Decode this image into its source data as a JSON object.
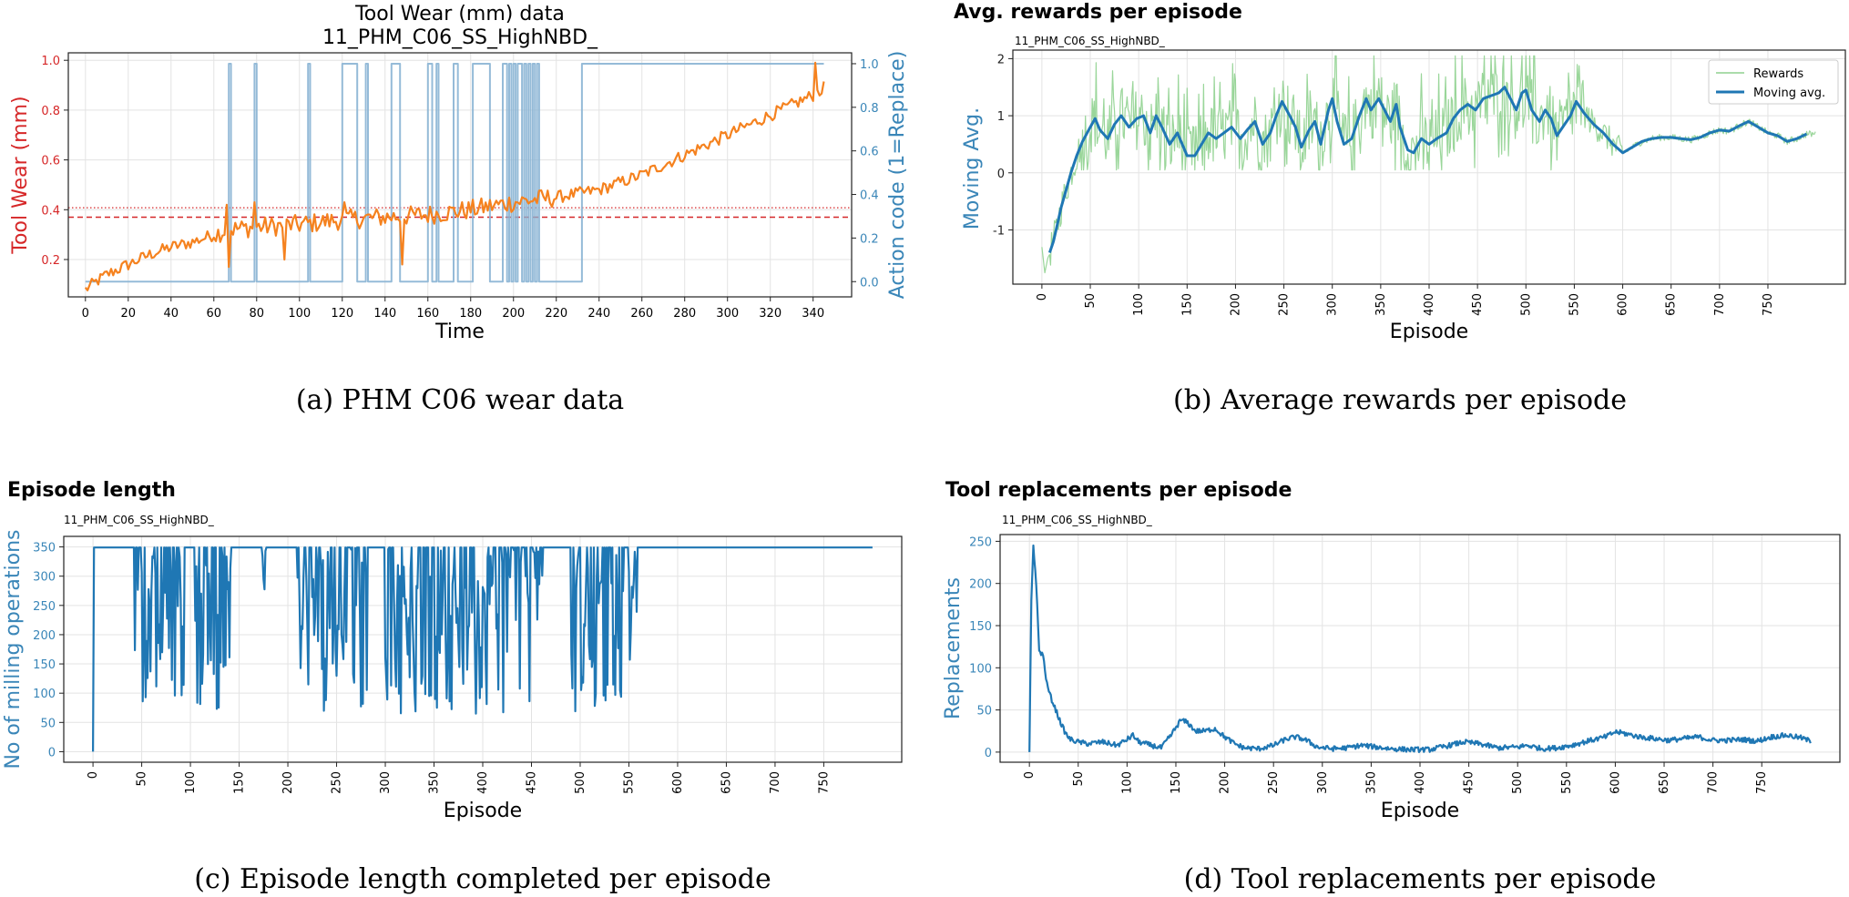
{
  "chart_data": [
    {
      "type": "line",
      "panel": "a",
      "title": "Tool Wear (mm) data",
      "subtitle": "11_PHM_C06_SS_HighNBD_",
      "xlabel": "Time",
      "ylabel": "Tool Wear (mm)",
      "y2label": "Action code (1=Replace)",
      "caption": "(a) PHM C06 wear data",
      "xlim": [
        -8,
        358
      ],
      "ylim": [
        0.05,
        1.03
      ],
      "y2lim": [
        -0.07,
        1.05
      ],
      "xticks": [
        0,
        20,
        40,
        60,
        80,
        100,
        120,
        140,
        160,
        180,
        200,
        220,
        240,
        260,
        280,
        300,
        320,
        340
      ],
      "yticks": [
        0.2,
        0.4,
        0.6,
        0.8,
        1.0
      ],
      "y2ticks": [
        0.0,
        0.2,
        0.4,
        0.6,
        0.8,
        1.0
      ],
      "colors": {
        "wear": "#f5821f",
        "action": "#8ab4d4",
        "ylabel": "#d62728",
        "y2label": "#3a86b8",
        "hline": "#d62728"
      },
      "hlines": [
        0.408,
        0.37
      ],
      "wear_trend": [
        [
          0,
          0.08
        ],
        [
          10,
          0.14
        ],
        [
          20,
          0.18
        ],
        [
          30,
          0.22
        ],
        [
          40,
          0.25
        ],
        [
          50,
          0.27
        ],
        [
          60,
          0.3
        ],
        [
          66,
          0.32
        ],
        [
          80,
          0.33
        ],
        [
          100,
          0.34
        ],
        [
          120,
          0.36
        ],
        [
          140,
          0.37
        ],
        [
          160,
          0.38
        ],
        [
          180,
          0.4
        ],
        [
          200,
          0.43
        ],
        [
          220,
          0.45
        ],
        [
          240,
          0.48
        ],
        [
          260,
          0.54
        ],
        [
          280,
          0.62
        ],
        [
          300,
          0.7
        ],
        [
          320,
          0.78
        ],
        [
          340,
          0.86
        ],
        [
          345,
          0.89
        ]
      ],
      "wear_noise": 0.025,
      "wear_spikes": [
        [
          66,
          0.42
        ],
        [
          67,
          0.17
        ],
        [
          79,
          0.43
        ],
        [
          93,
          0.2
        ],
        [
          121,
          0.43
        ],
        [
          148,
          0.18
        ],
        [
          341,
          0.99
        ]
      ],
      "action_steps": [
        [
          0,
          0
        ],
        [
          67,
          0
        ],
        [
          67,
          1
        ],
        [
          68,
          1
        ],
        [
          68,
          0
        ],
        [
          79,
          0
        ],
        [
          79,
          1
        ],
        [
          80,
          1
        ],
        [
          80,
          0
        ],
        [
          104,
          0
        ],
        [
          104,
          1
        ],
        [
          105,
          1
        ],
        [
          105,
          0
        ],
        [
          120,
          0
        ],
        [
          120,
          1
        ],
        [
          127,
          1
        ],
        [
          127,
          0
        ],
        [
          131,
          0
        ],
        [
          131,
          1
        ],
        [
          132,
          1
        ],
        [
          132,
          0
        ],
        [
          143,
          0
        ],
        [
          143,
          1
        ],
        [
          147,
          1
        ],
        [
          147,
          0
        ],
        [
          160,
          0
        ],
        [
          160,
          1
        ],
        [
          162,
          1
        ],
        [
          162,
          0
        ],
        [
          164,
          0
        ],
        [
          164,
          1
        ],
        [
          165,
          1
        ],
        [
          165,
          0
        ],
        [
          172,
          0
        ],
        [
          172,
          1
        ],
        [
          174,
          1
        ],
        [
          174,
          0
        ],
        [
          181,
          0
        ],
        [
          181,
          1
        ],
        [
          189,
          1
        ],
        [
          189,
          0
        ],
        [
          195,
          0
        ],
        [
          195,
          1
        ],
        [
          197,
          1
        ],
        [
          197,
          0
        ],
        [
          198,
          0
        ],
        [
          198,
          1
        ],
        [
          199,
          1
        ],
        [
          199,
          0
        ],
        [
          200,
          0
        ],
        [
          200,
          1
        ],
        [
          201,
          1
        ],
        [
          201,
          0
        ],
        [
          202,
          0
        ],
        [
          202,
          1
        ],
        [
          204,
          1
        ],
        [
          204,
          0
        ],
        [
          205,
          0
        ],
        [
          205,
          1
        ],
        [
          206,
          1
        ],
        [
          206,
          0
        ],
        [
          207,
          0
        ],
        [
          207,
          1
        ],
        [
          208,
          1
        ],
        [
          208,
          0
        ],
        [
          209,
          0
        ],
        [
          209,
          1
        ],
        [
          210,
          1
        ],
        [
          210,
          0
        ],
        [
          211,
          0
        ],
        [
          211,
          1
        ],
        [
          212,
          1
        ],
        [
          212,
          0
        ],
        [
          232,
          0
        ],
        [
          232,
          1
        ],
        [
          345,
          1
        ]
      ]
    },
    {
      "type": "line",
      "panel": "b",
      "title": "Avg. rewards per episode",
      "subtitle": "11_PHM_C06_SS_HighNBD_",
      "xlabel": "Episode",
      "ylabel": "Moving Avg.",
      "caption": "(b) Average rewards per episode",
      "xlim": [
        -30,
        830
      ],
      "ylim": [
        -1.95,
        2.15
      ],
      "xticks": [
        0,
        50,
        100,
        150,
        200,
        250,
        300,
        350,
        400,
        450,
        500,
        550,
        600,
        650,
        700,
        750
      ],
      "yticks": [
        -1,
        0,
        1,
        2
      ],
      "legend": {
        "position": "top-right",
        "entries": [
          "Rewards",
          "Moving avg."
        ]
      },
      "colors": {
        "rewards": "#8fd18f",
        "moving_avg": "#1f77b4",
        "ylabel": "#3a86b8"
      },
      "moving_avg": [
        [
          8,
          -1.4
        ],
        [
          12,
          -1.2
        ],
        [
          16,
          -0.9
        ],
        [
          20,
          -0.6
        ],
        [
          25,
          -0.3
        ],
        [
          30,
          0.0
        ],
        [
          36,
          0.3
        ],
        [
          42,
          0.55
        ],
        [
          50,
          0.8
        ],
        [
          55,
          0.95
        ],
        [
          60,
          0.75
        ],
        [
          68,
          0.6
        ],
        [
          75,
          0.85
        ],
        [
          82,
          1.0
        ],
        [
          90,
          0.8
        ],
        [
          98,
          0.95
        ],
        [
          105,
          1.0
        ],
        [
          112,
          0.7
        ],
        [
          118,
          1.0
        ],
        [
          124,
          0.8
        ],
        [
          132,
          0.5
        ],
        [
          140,
          0.7
        ],
        [
          150,
          0.3
        ],
        [
          158,
          0.3
        ],
        [
          165,
          0.5
        ],
        [
          172,
          0.7
        ],
        [
          180,
          0.6
        ],
        [
          188,
          0.7
        ],
        [
          196,
          0.8
        ],
        [
          205,
          0.6
        ],
        [
          212,
          0.75
        ],
        [
          220,
          0.9
        ],
        [
          228,
          0.5
        ],
        [
          236,
          0.7
        ],
        [
          242,
          1.0
        ],
        [
          248,
          1.25
        ],
        [
          256,
          1.0
        ],
        [
          262,
          0.8
        ],
        [
          268,
          0.45
        ],
        [
          276,
          0.75
        ],
        [
          282,
          0.9
        ],
        [
          288,
          0.5
        ],
        [
          296,
          1.1
        ],
        [
          300,
          1.3
        ],
        [
          305,
          0.9
        ],
        [
          312,
          0.5
        ],
        [
          320,
          0.6
        ],
        [
          328,
          1.0
        ],
        [
          335,
          1.3
        ],
        [
          340,
          1.1
        ],
        [
          348,
          1.3
        ],
        [
          354,
          1.1
        ],
        [
          360,
          0.9
        ],
        [
          366,
          1.2
        ],
        [
          370,
          0.8
        ],
        [
          378,
          0.4
        ],
        [
          384,
          0.35
        ],
        [
          392,
          0.6
        ],
        [
          400,
          0.5
        ],
        [
          408,
          0.6
        ],
        [
          418,
          0.7
        ],
        [
          425,
          0.95
        ],
        [
          432,
          1.1
        ],
        [
          440,
          1.2
        ],
        [
          448,
          1.1
        ],
        [
          456,
          1.3
        ],
        [
          464,
          1.35
        ],
        [
          472,
          1.4
        ],
        [
          478,
          1.5
        ],
        [
          484,
          1.3
        ],
        [
          490,
          1.1
        ],
        [
          496,
          1.4
        ],
        [
          500,
          1.45
        ],
        [
          506,
          1.1
        ],
        [
          514,
          0.9
        ],
        [
          520,
          1.1
        ],
        [
          526,
          0.95
        ],
        [
          532,
          0.65
        ],
        [
          540,
          0.85
        ],
        [
          546,
          1.0
        ],
        [
          552,
          1.25
        ],
        [
          560,
          1.05
        ],
        [
          570,
          0.85
        ],
        [
          580,
          0.7
        ],
        [
          590,
          0.5
        ],
        [
          600,
          0.35
        ],
        [
          610,
          0.45
        ],
        [
          620,
          0.55
        ],
        [
          630,
          0.6
        ],
        [
          640,
          0.62
        ],
        [
          650,
          0.62
        ],
        [
          660,
          0.6
        ],
        [
          670,
          0.58
        ],
        [
          680,
          0.62
        ],
        [
          690,
          0.7
        ],
        [
          700,
          0.75
        ],
        [
          710,
          0.73
        ],
        [
          720,
          0.82
        ],
        [
          730,
          0.9
        ],
        [
          740,
          0.8
        ],
        [
          750,
          0.7
        ],
        [
          760,
          0.65
        ],
        [
          770,
          0.55
        ],
        [
          780,
          0.6
        ],
        [
          790,
          0.68
        ]
      ],
      "rewards_noise": [
        [
          0,
          40,
          0.3
        ],
        [
          40,
          560,
          0.55
        ],
        [
          560,
          600,
          0.25
        ],
        [
          600,
          800,
          0.06
        ]
      ],
      "rewards_start": [
        [
          0,
          -1.3
        ],
        [
          3,
          -1.75
        ],
        [
          6,
          -1.5
        ]
      ]
    },
    {
      "type": "line",
      "panel": "c",
      "title": "Episode length",
      "subtitle": "11_PHM_C06_SS_HighNBD_",
      "xlabel": "Episode",
      "ylabel": "No of milling operations",
      "caption": "(c) Episode length completed per episode",
      "xlim": [
        -30,
        830
      ],
      "ylim": [
        -18,
        368
      ],
      "xticks": [
        0,
        50,
        100,
        150,
        200,
        250,
        300,
        350,
        400,
        450,
        500,
        550,
        600,
        650,
        700,
        750
      ],
      "yticks": [
        0,
        50,
        100,
        150,
        200,
        250,
        300,
        350
      ],
      "colors": {
        "line": "#1f77b4",
        "ylabel": "#3a86b8"
      },
      "max_value": 349,
      "segments": [
        [
          40,
          95,
          85
        ],
        [
          105,
          133,
          70
        ],
        [
          133,
          142,
          95
        ],
        [
          172,
          178,
          250
        ],
        [
          210,
          265,
          65
        ],
        [
          265,
          282,
          70
        ],
        [
          300,
          355,
          65
        ],
        [
          355,
          450,
          65
        ],
        [
          452,
          462,
          210
        ],
        [
          490,
          525,
          65
        ],
        [
          525,
          545,
          70
        ],
        [
          550,
          560,
          130
        ]
      ]
    },
    {
      "type": "line",
      "panel": "d",
      "title": "Tool replacements per episode",
      "subtitle": "11_PHM_C06_SS_HighNBD_",
      "xlabel": "Episode",
      "ylabel": "Replacements",
      "caption": "(d) Tool replacements per episode",
      "xlim": [
        -30,
        830
      ],
      "ylim": [
        -12,
        258
      ],
      "xticks": [
        0,
        50,
        100,
        150,
        200,
        250,
        300,
        350,
        400,
        450,
        500,
        550,
        600,
        650,
        700,
        750
      ],
      "yticks": [
        0,
        50,
        100,
        150,
        200,
        250
      ],
      "colors": {
        "line": "#1f77b4",
        "ylabel": "#3a86b8"
      },
      "trend": [
        [
          0,
          0
        ],
        [
          2,
          180
        ],
        [
          4,
          245
        ],
        [
          7,
          200
        ],
        [
          10,
          120
        ],
        [
          14,
          115
        ],
        [
          18,
          80
        ],
        [
          22,
          65
        ],
        [
          27,
          50
        ],
        [
          32,
          35
        ],
        [
          37,
          22
        ],
        [
          42,
          15
        ],
        [
          50,
          12
        ],
        [
          60,
          10
        ],
        [
          75,
          12
        ],
        [
          90,
          8
        ],
        [
          100,
          15
        ],
        [
          106,
          20
        ],
        [
          112,
          12
        ],
        [
          125,
          8
        ],
        [
          135,
          5
        ],
        [
          145,
          20
        ],
        [
          155,
          38
        ],
        [
          162,
          35
        ],
        [
          170,
          25
        ],
        [
          180,
          25
        ],
        [
          190,
          28
        ],
        [
          200,
          18
        ],
        [
          210,
          10
        ],
        [
          220,
          5
        ],
        [
          235,
          4
        ],
        [
          250,
          8
        ],
        [
          262,
          15
        ],
        [
          272,
          18
        ],
        [
          282,
          15
        ],
        [
          295,
          6
        ],
        [
          310,
          4
        ],
        [
          325,
          5
        ],
        [
          340,
          8
        ],
        [
          355,
          6
        ],
        [
          370,
          4
        ],
        [
          390,
          3
        ],
        [
          410,
          3
        ],
        [
          430,
          8
        ],
        [
          445,
          12
        ],
        [
          460,
          10
        ],
        [
          480,
          5
        ],
        [
          500,
          6
        ],
        [
          510,
          8
        ],
        [
          525,
          4
        ],
        [
          540,
          5
        ],
        [
          555,
          8
        ],
        [
          575,
          14
        ],
        [
          590,
          18
        ],
        [
          600,
          24
        ],
        [
          610,
          22
        ],
        [
          625,
          18
        ],
        [
          640,
          16
        ],
        [
          655,
          14
        ],
        [
          670,
          16
        ],
        [
          685,
          18
        ],
        [
          700,
          14
        ],
        [
          715,
          14
        ],
        [
          730,
          15
        ],
        [
          745,
          13
        ],
        [
          760,
          18
        ],
        [
          775,
          20
        ],
        [
          790,
          17
        ],
        [
          800,
          13
        ]
      ],
      "noise": 3
    }
  ]
}
